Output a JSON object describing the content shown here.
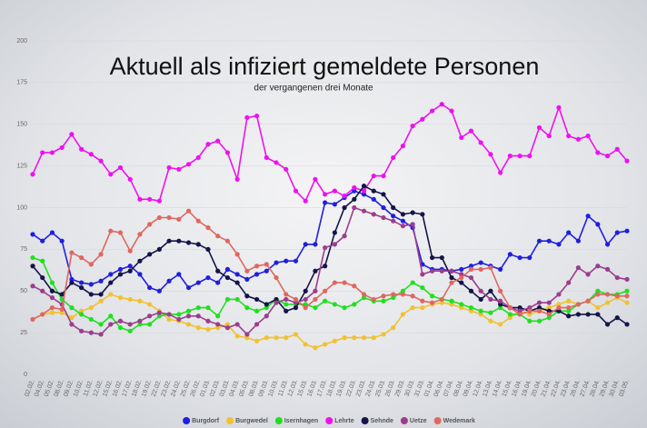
{
  "chart_data": {
    "type": "line",
    "title": "Aktuell als infiziert gemeldete Personen",
    "subtitle": "der vergangenen drei Monate",
    "categories": [
      "02.02.",
      "04.02.",
      "05.02.",
      "08.02.",
      "09.02.",
      "10.02.",
      "11.02.",
      "12.02.",
      "15.02.",
      "16.02.",
      "17.02.",
      "18.02.",
      "19.02.",
      "22.02.",
      "23.02.",
      "24.02.",
      "25.02.",
      "26.02.",
      "01.03.",
      "02.03.",
      "03.03.",
      "04.03.",
      "05.03.",
      "08.03.",
      "09.03.",
      "10.03.",
      "11.03.",
      "12.03.",
      "15.03.",
      "16.03.",
      "17.03.",
      "18.03.",
      "19.03.",
      "22.03.",
      "23.03.",
      "24.03.",
      "25.03.",
      "26.03.",
      "29.03.",
      "30.03.",
      "31.03.",
      "01.04.",
      "06.04.",
      "07.04.",
      "08.04.",
      "09.04.",
      "12.04.",
      "13.04.",
      "14.04.",
      "15.04.",
      "16.04.",
      "19.04.",
      "20.04.",
      "21.04.",
      "22.04.",
      "23.04.",
      "26.04.",
      "27.04.",
      "28.04.",
      "29.04.",
      "30.04.",
      "03.05."
    ],
    "ylim": [
      0,
      200
    ],
    "yticks": [
      0,
      25,
      50,
      75,
      100,
      125,
      150,
      175,
      200
    ],
    "grid": true,
    "series": [
      {
        "name": "Burgdorf",
        "color": "#1f1fe0",
        "values": [
          84,
          80,
          85,
          80,
          57,
          55,
          54,
          56,
          60,
          63,
          65,
          60,
          52,
          50,
          56,
          60,
          52,
          55,
          58,
          55,
          63,
          60,
          57,
          60,
          62,
          67,
          68,
          68,
          78,
          78,
          103,
          102,
          106,
          110,
          108,
          105,
          100,
          95,
          92,
          88,
          66,
          63,
          63,
          62,
          63,
          65,
          67,
          65,
          63,
          72,
          70,
          70,
          80,
          80,
          78,
          85,
          80,
          95,
          90,
          78,
          85,
          86
        ]
      },
      {
        "name": "Burgwedel",
        "color": "#f2c12e",
        "values": [
          33,
          36,
          37,
          37,
          34,
          38,
          40,
          44,
          48,
          46,
          45,
          44,
          42,
          38,
          33,
          32,
          30,
          28,
          27,
          28,
          30,
          23,
          22,
          20,
          22,
          22,
          22,
          24,
          18,
          16,
          18,
          20,
          22,
          22,
          22,
          22,
          24,
          28,
          36,
          40,
          40,
          42,
          43,
          42,
          40,
          38,
          36,
          32,
          30,
          34,
          38,
          36,
          38,
          40,
          42,
          44,
          42,
          44,
          40,
          43,
          46,
          43
        ]
      },
      {
        "name": "Isernhagen",
        "color": "#1fe01f",
        "values": [
          70,
          68,
          55,
          45,
          40,
          36,
          33,
          30,
          35,
          28,
          26,
          30,
          30,
          35,
          36,
          36,
          38,
          40,
          40,
          35,
          45,
          45,
          40,
          38,
          40,
          45,
          42,
          42,
          42,
          40,
          44,
          42,
          40,
          42,
          46,
          44,
          44,
          46,
          50,
          55,
          52,
          47,
          45,
          44,
          42,
          40,
          38,
          37,
          40,
          36,
          36,
          32,
          32,
          34,
          38,
          38,
          42,
          44,
          50,
          48,
          48,
          50
        ]
      },
      {
        "name": "Lehrte",
        "color": "#ee11ee",
        "values": [
          120,
          133,
          133,
          136,
          144,
          135,
          132,
          128,
          120,
          124,
          117,
          105,
          105,
          104,
          124,
          123,
          126,
          130,
          138,
          140,
          133,
          117,
          154,
          155,
          130,
          127,
          123,
          110,
          104,
          117,
          108,
          110,
          107,
          112,
          110,
          119,
          119,
          130,
          137,
          149,
          153,
          158,
          162,
          158,
          142,
          146,
          139,
          132,
          121,
          131,
          131,
          131,
          148,
          143,
          160,
          143,
          141,
          143,
          133,
          131,
          135,
          128
        ]
      },
      {
        "name": "Sehnde",
        "color": "#14144a",
        "values": [
          65,
          58,
          50,
          48,
          55,
          52,
          48,
          48,
          55,
          60,
          62,
          68,
          72,
          75,
          80,
          80,
          79,
          78,
          75,
          62,
          58,
          55,
          47,
          45,
          42,
          45,
          38,
          40,
          50,
          62,
          65,
          85,
          100,
          105,
          113,
          110,
          108,
          100,
          96,
          97,
          96,
          70,
          70,
          58,
          55,
          50,
          45,
          50,
          42,
          40,
          40,
          38,
          40,
          38,
          38,
          35,
          36,
          36,
          36,
          30,
          34,
          30
        ]
      },
      {
        "name": "Uetze",
        "color": "#9b3d8e",
        "values": [
          53,
          50,
          46,
          42,
          30,
          26,
          25,
          24,
          30,
          32,
          30,
          32,
          35,
          37,
          36,
          33,
          35,
          35,
          32,
          30,
          28,
          30,
          24,
          30,
          35,
          43,
          45,
          43,
          45,
          50,
          76,
          78,
          83,
          100,
          98,
          96,
          94,
          92,
          89,
          90,
          60,
          62,
          62,
          62,
          60,
          58,
          50,
          45,
          44,
          40,
          38,
          40,
          43,
          43,
          48,
          55,
          64,
          60,
          65,
          63,
          58,
          57
        ]
      },
      {
        "name": "Wedemark",
        "color": "#e0675f",
        "values": [
          33,
          36,
          40,
          39,
          73,
          70,
          66,
          72,
          86,
          85,
          74,
          84,
          90,
          94,
          94,
          93,
          98,
          92,
          88,
          83,
          80,
          72,
          62,
          65,
          66,
          58,
          48,
          45,
          40,
          45,
          50,
          55,
          55,
          53,
          48,
          45,
          47,
          48,
          48,
          47,
          44,
          43,
          45,
          55,
          58,
          63,
          63,
          64,
          50,
          40,
          36,
          38,
          38,
          36,
          40,
          40,
          42,
          44,
          48,
          48,
          47,
          47
        ]
      }
    ]
  }
}
